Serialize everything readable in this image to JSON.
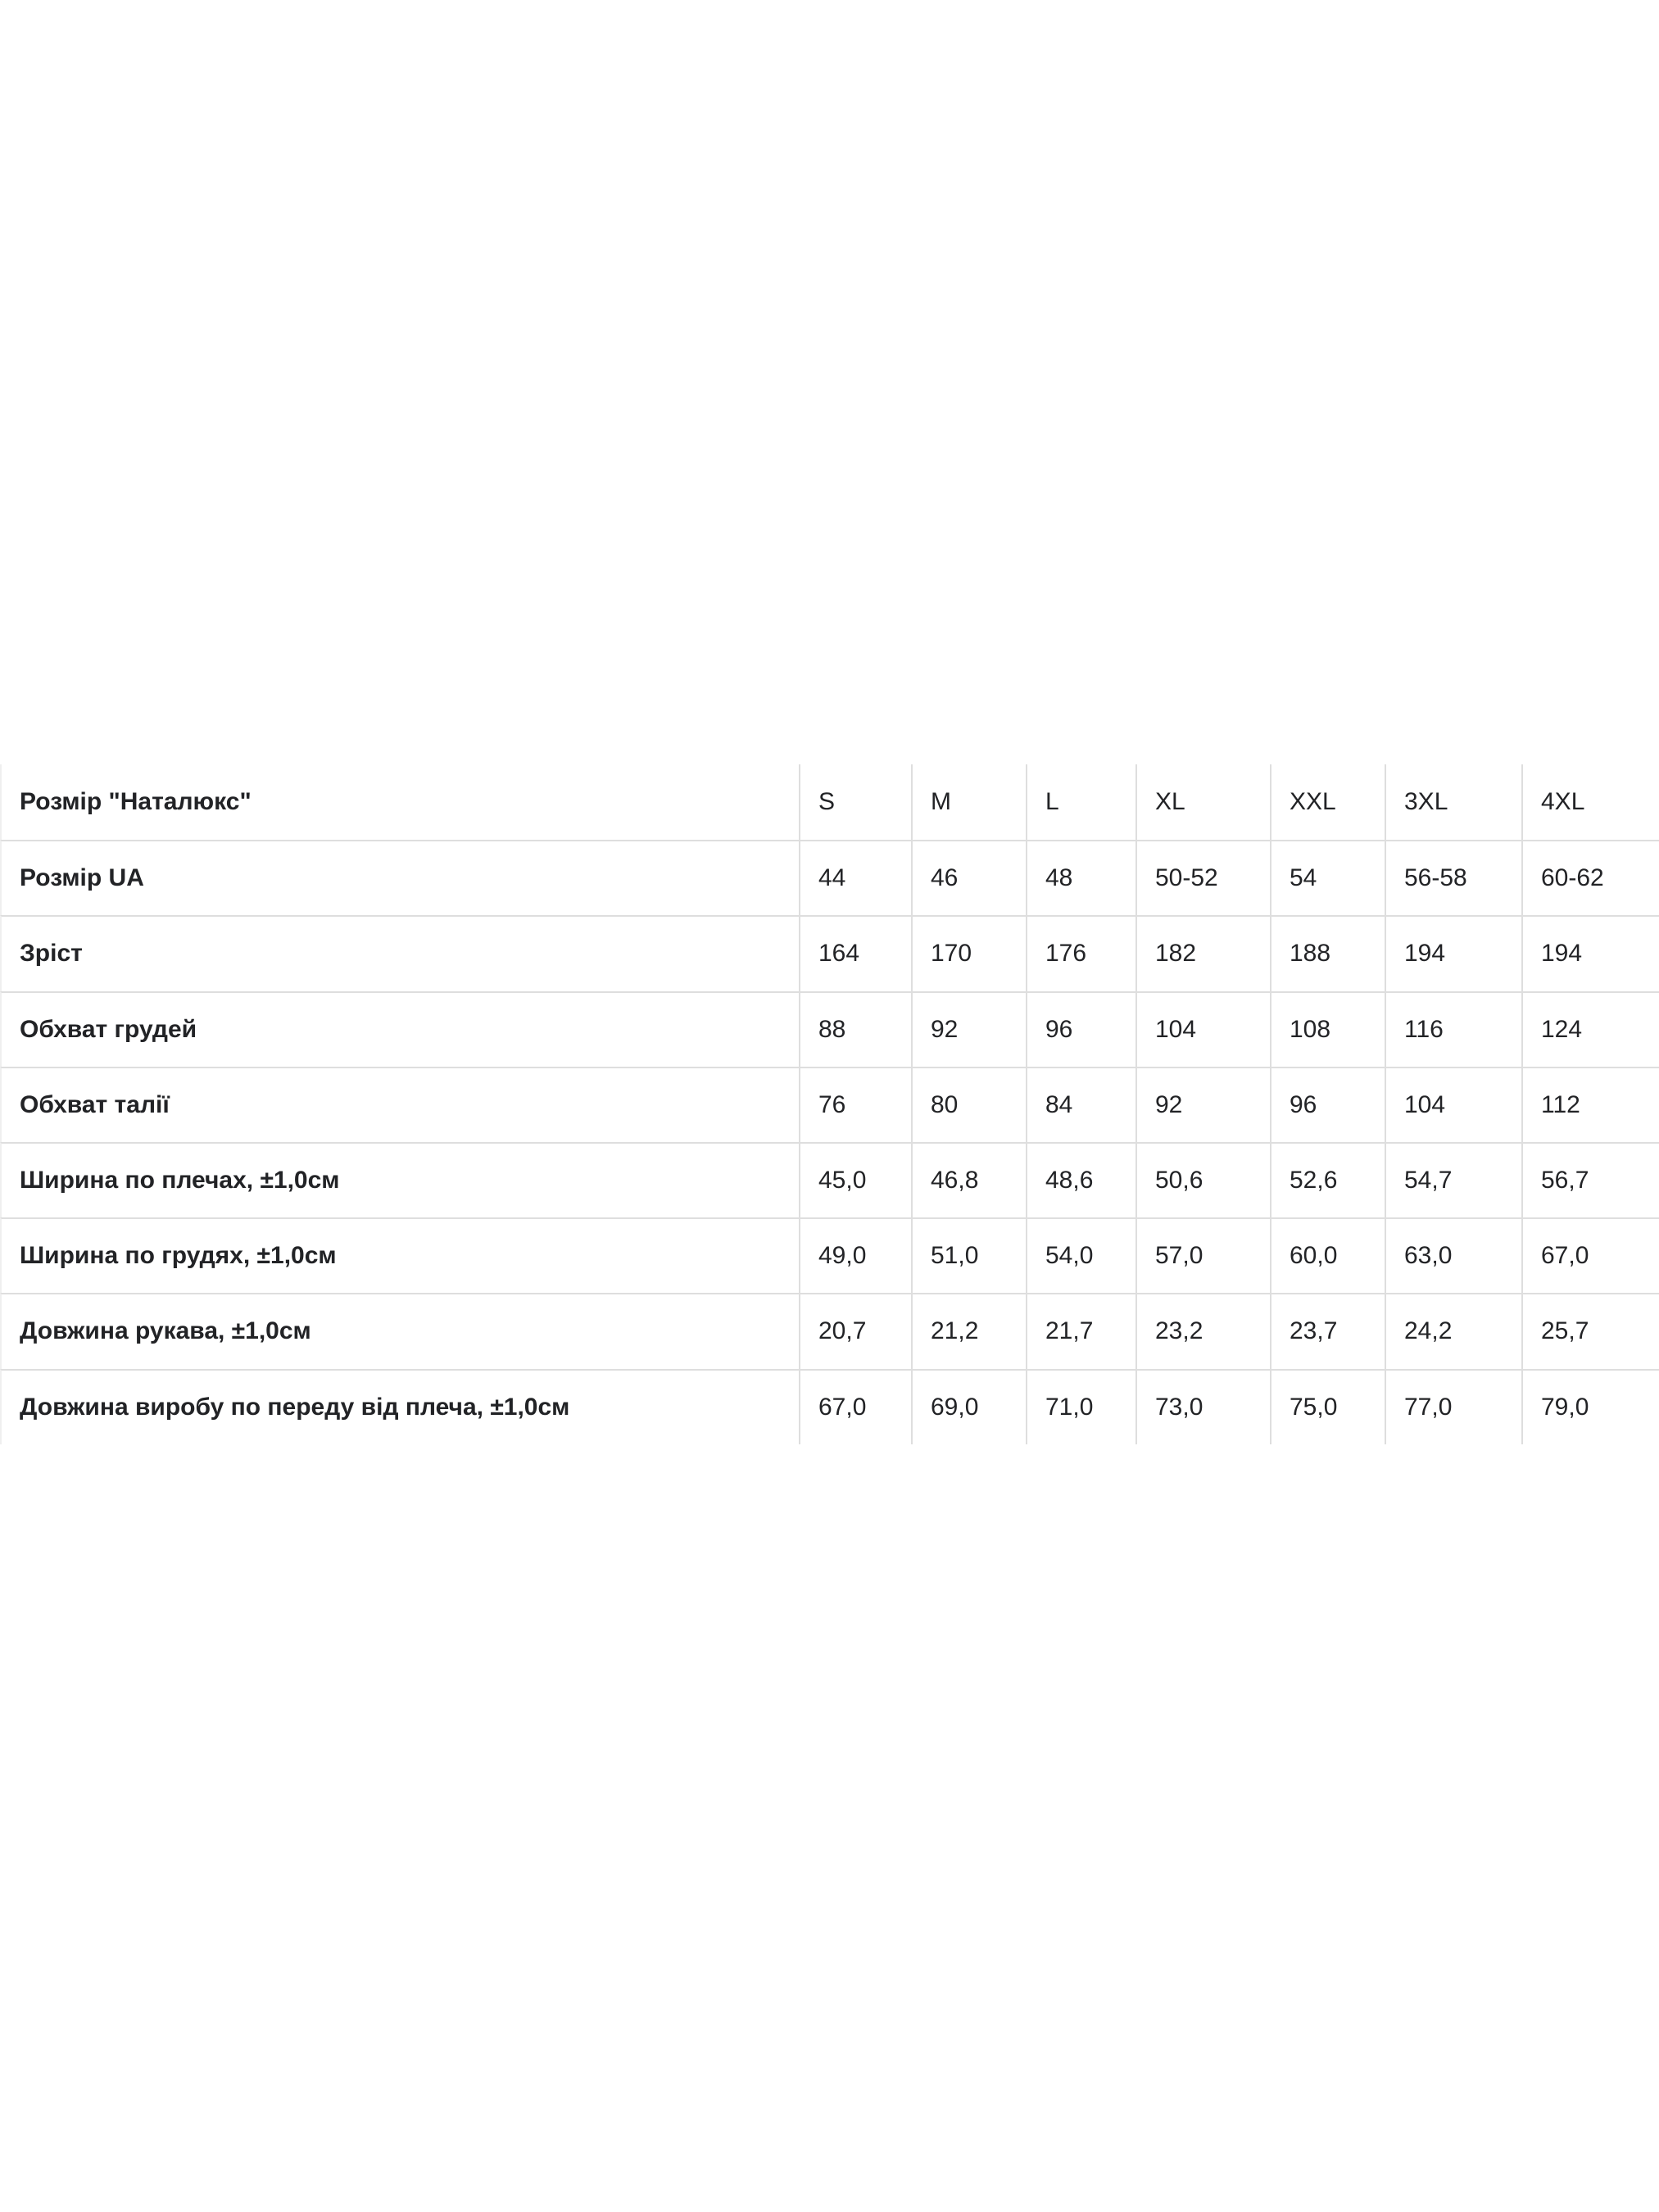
{
  "size_chart": {
    "table_type": "table",
    "description_language": "uk",
    "rows": [
      {
        "label": "Розмір \"Наталюкс\"",
        "values": [
          "S",
          "M",
          "L",
          "XL",
          "XXL",
          "3XL",
          "4XL"
        ]
      },
      {
        "label": "Розмір UA",
        "values": [
          "44",
          "46",
          "48",
          "50-52",
          "54",
          "56-58",
          "60-62"
        ]
      },
      {
        "label": "Зріст",
        "values": [
          "164",
          "170",
          "176",
          "182",
          "188",
          "194",
          "194"
        ]
      },
      {
        "label": "Обхват грудей",
        "values": [
          "88",
          "92",
          "96",
          "104",
          "108",
          "116",
          "124"
        ]
      },
      {
        "label": "Обхват талії",
        "values": [
          "76",
          "80",
          "84",
          "92",
          "96",
          "104",
          "112"
        ]
      },
      {
        "label": "Ширина по плечах, ±1,0см",
        "values": [
          "45,0",
          "46,8",
          "48,6",
          "50,6",
          "52,6",
          "54,7",
          "56,7"
        ]
      },
      {
        "label": "Ширина по грудях, ±1,0см",
        "values": [
          "49,0",
          "51,0",
          "54,0",
          "57,0",
          "60,0",
          "63,0",
          "67,0"
        ]
      },
      {
        "label": "Довжина рукава, ±1,0см",
        "values": [
          "20,7",
          "21,2",
          "21,7",
          "23,2",
          "23,7",
          "24,2",
          "25,7"
        ]
      },
      {
        "label": "Довжина виробу по переду від плеча, ±1,0см",
        "values": [
          "67,0",
          "69,0",
          "71,0",
          "73,0",
          "75,0",
          "77,0",
          "79,0"
        ]
      }
    ],
    "colors": {
      "background": "#ffffff",
      "text": "#222326",
      "grid_line": "#dedede"
    }
  }
}
